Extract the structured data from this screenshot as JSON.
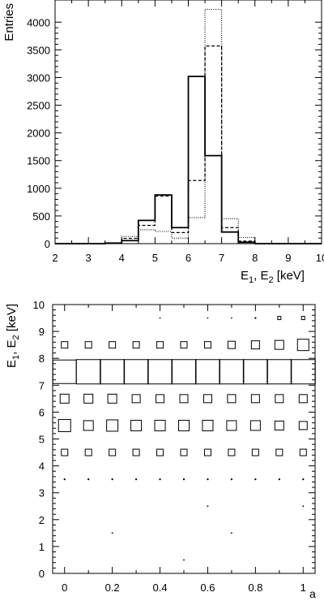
{
  "chart_data": [
    {
      "type": "histogram",
      "ylabel": "Entries",
      "xlabel": {
        "E": "E",
        "sub1": "1",
        "sep": ", ",
        "sub2": "2",
        "unit": " [keV]"
      },
      "xlim": [
        2,
        10
      ],
      "ylim": [
        0,
        4400
      ],
      "xticks": [
        "2",
        "3",
        "4",
        "5",
        "6",
        "7",
        "8",
        "9",
        "10"
      ],
      "yticks": [
        "0",
        "500",
        "1000",
        "1500",
        "2000",
        "2500",
        "3000",
        "3500",
        "4000"
      ],
      "bin_edges": [
        2,
        2.5,
        3,
        3.5,
        4,
        4.5,
        5,
        5.5,
        6,
        6.5,
        7,
        7.5,
        8,
        8.5,
        9,
        9.5,
        10
      ],
      "series": [
        {
          "style": "solid",
          "values": [
            0,
            0,
            0,
            10,
            55,
            420,
            880,
            290,
            3020,
            1590,
            210,
            25,
            0,
            0,
            0,
            0
          ]
        },
        {
          "style": "dashed",
          "values": [
            0,
            0,
            0,
            12,
            95,
            330,
            860,
            200,
            1140,
            3570,
            290,
            45,
            0,
            0,
            0,
            0
          ]
        },
        {
          "style": "dotted",
          "values": [
            0,
            0,
            0,
            8,
            130,
            250,
            220,
            100,
            470,
            4230,
            450,
            110,
            0,
            0,
            0,
            0
          ]
        }
      ]
    },
    {
      "type": "box2d",
      "xlabel": "a",
      "ylabel": {
        "E": "E",
        "sub1": "1",
        "sep": ", ",
        "sub2": "2",
        "unit": " [keV]"
      },
      "xlim": [
        -0.05,
        1.05
      ],
      "ylim": [
        0,
        10
      ],
      "xticks": [
        "0",
        "0.2",
        "0.4",
        "0.6",
        "0.8",
        "1"
      ],
      "xtick_values": [
        0,
        0.2,
        0.4,
        0.6,
        0.8,
        1
      ],
      "yticks": [
        "0",
        "1",
        "2",
        "3",
        "4",
        "5",
        "6",
        "7",
        "8",
        "9",
        "10"
      ],
      "a_values": [
        0,
        0.1,
        0.2,
        0.3,
        0.4,
        0.5,
        0.6,
        0.7,
        0.8,
        0.9,
        1.0
      ],
      "cells": [
        {
          "e": 7.5,
          "sizes": [
            29,
            30,
            30,
            30,
            30,
            30,
            30,
            30,
            30,
            30,
            30
          ]
        },
        {
          "e": 5.5,
          "sizes": [
            15,
            12,
            14,
            13,
            13,
            13,
            13,
            12,
            12,
            11,
            10
          ]
        },
        {
          "e": 6.5,
          "sizes": [
            11,
            11,
            11,
            10,
            10,
            10,
            10,
            10,
            10,
            10,
            10
          ]
        },
        {
          "e": 4.5,
          "sizes": [
            8,
            8,
            8,
            8,
            8,
            8,
            8,
            8,
            8,
            8,
            8
          ]
        },
        {
          "e": 8.5,
          "sizes": [
            8,
            8,
            8,
            8,
            8,
            8,
            8,
            9,
            10,
            11,
            14
          ]
        },
        {
          "e": 3.5,
          "sizes": [
            2,
            2,
            2,
            2,
            2,
            2,
            2,
            2,
            2,
            2,
            2
          ]
        },
        {
          "e": 9.5,
          "sizes": [
            0,
            0,
            0,
            0,
            1.5,
            0,
            1.5,
            1.5,
            2,
            4,
            4
          ]
        }
      ],
      "points": [
        {
          "a": 0.2,
          "e": 1.5
        },
        {
          "a": 0.5,
          "e": 0.5
        },
        {
          "a": 0.6,
          "e": 2.5
        },
        {
          "a": 0.7,
          "e": 1.5
        },
        {
          "a": 1.0,
          "e": 2.5
        }
      ]
    }
  ]
}
